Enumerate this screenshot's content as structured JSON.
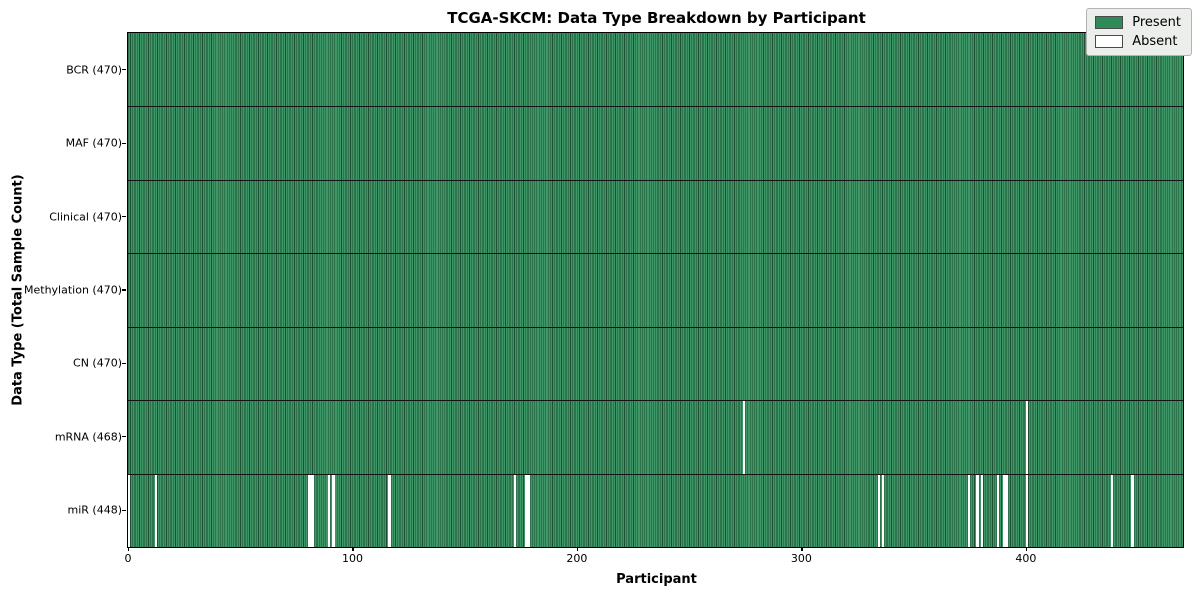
{
  "figure": {
    "title": "TCGA-SKCM: Data Type Breakdown by Participant",
    "x_axis_label": "Participant",
    "y_axis_label": "Data Type (Total Sample Count)"
  },
  "colors": {
    "present": "#2e8b57",
    "present_fill": "#3f9767",
    "bar_edge": "#1b5132",
    "absent": "#ffffff",
    "separator": "#141414",
    "legend_bg": "#ebeeea",
    "legend_border": "#b3b3b3"
  },
  "chart_data": {
    "type": "heatmap",
    "title": "TCGA-SKCM: Data Type Breakdown by Participant",
    "xlabel": "Participant",
    "ylabel": "Data Type (Total Sample Count)",
    "x_range": [
      0,
      470
    ],
    "total_participants": 470,
    "x_ticks": [
      {
        "value": 0,
        "label": "0"
      },
      {
        "value": 100,
        "label": "100"
      },
      {
        "value": 200,
        "label": "200"
      },
      {
        "value": 300,
        "label": "300"
      },
      {
        "value": 400,
        "label": "400"
      }
    ],
    "legend_position": "upper right",
    "grid": false,
    "legend": [
      {
        "label": "Present",
        "color": "#2e8b57"
      },
      {
        "label": "Absent",
        "color": "#ffffff"
      }
    ],
    "rows": [
      {
        "label": "BCR (470)",
        "data_type": "BCR",
        "present_count": 470,
        "absent_participants": []
      },
      {
        "label": "MAF (470)",
        "data_type": "MAF",
        "present_count": 470,
        "absent_participants": []
      },
      {
        "label": "Clinical (470)",
        "data_type": "Clinical",
        "present_count": 470,
        "absent_participants": []
      },
      {
        "label": "Methylation (470)",
        "data_type": "Methylation",
        "present_count": 470,
        "absent_participants": []
      },
      {
        "label": "CN (470)",
        "data_type": "CN",
        "present_count": 470,
        "absent_participants": []
      },
      {
        "label": "mRNA (468)",
        "data_type": "mRNA",
        "present_count": 468,
        "absent_participants": [
          274,
          400
        ]
      },
      {
        "label": "miR (448)",
        "data_type": "miR",
        "present_count": 448,
        "absent_participants": [
          0,
          12,
          80,
          81,
          82,
          89,
          91,
          116,
          172,
          177,
          178,
          334,
          336,
          374,
          378,
          380,
          387,
          390,
          391,
          400,
          438,
          447
        ]
      }
    ]
  }
}
